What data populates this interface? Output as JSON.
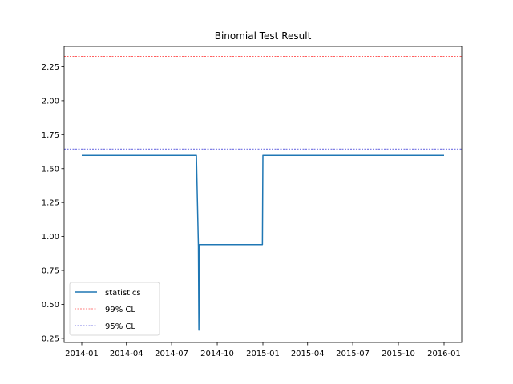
{
  "chart_data": {
    "type": "line",
    "title": "Binomial Test Result",
    "xlabel": "",
    "ylabel": "",
    "xlim": [
      "2014-01-01",
      "2016-01-01"
    ],
    "ylim": [
      0.22,
      2.4
    ],
    "x_ticks": [
      "2014-01-01",
      "2014-04-01",
      "2014-07-01",
      "2014-10-01",
      "2015-01-01",
      "2015-04-01",
      "2015-07-01",
      "2015-10-01",
      "2016-01-01"
    ],
    "x_tick_labels": [
      "2014-01",
      "2014-04",
      "2014-07",
      "2014-10",
      "2015-01",
      "2015-04",
      "2015-07",
      "2015-10",
      "2016-01"
    ],
    "y_ticks": [
      0.25,
      0.5,
      0.75,
      1.0,
      1.25,
      1.5,
      1.75,
      2.0,
      2.25
    ],
    "y_tick_labels": [
      "0.25",
      "0.50",
      "0.75",
      "1.00",
      "1.25",
      "1.50",
      "1.75",
      "2.00",
      "2.25"
    ],
    "grid": false,
    "legend_position": "lower-left",
    "series": [
      {
        "name": "statistics",
        "color": "#1f77b4",
        "style": "solid",
        "x": [
          "2014-01-01",
          "2014-08-20",
          "2014-08-24",
          "2014-08-25",
          "2014-08-26",
          "2014-12-31",
          "2015-01-01",
          "2016-01-01"
        ],
        "y": [
          1.597,
          1.597,
          0.93,
          0.31,
          0.94,
          0.94,
          1.597,
          1.597
        ]
      }
    ],
    "reference_lines": [
      {
        "name": "99% CL",
        "y": 2.326,
        "color": "#ff0000",
        "style": "dashed"
      },
      {
        "name": "95% CL",
        "y": 1.645,
        "color": "#0000cc",
        "style": "dashed"
      }
    ]
  }
}
